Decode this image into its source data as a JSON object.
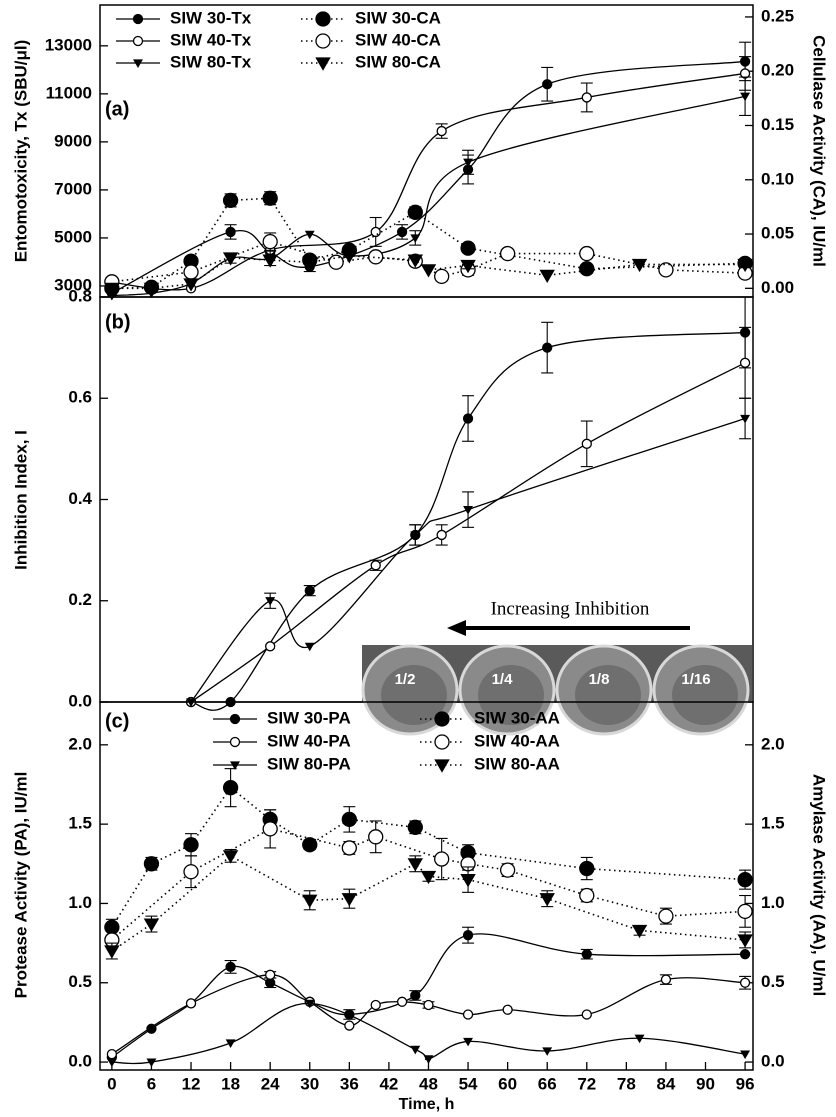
{
  "chart_data": [
    {
      "type": "line",
      "panel_label": "(a)",
      "ylabel": "Entomotoxicity, Tx (SBU/μl)",
      "y2label": "Cellulase Activity (CA), IU/ml",
      "xlim": [
        -1.8,
        97.2
      ],
      "ylim": [
        2540,
        14700
      ],
      "yticks": [
        3000,
        5000,
        7000,
        9000,
        11000,
        13000
      ],
      "y2lim": [
        -0.008,
        0.261
      ],
      "y2ticks": [
        {
          "value": 0,
          "label": "0.00"
        },
        {
          "value": 0.05,
          "label": "0.05"
        },
        {
          "value": 0.1,
          "label": "0.10"
        },
        {
          "value": 0.15,
          "label": "0.15"
        },
        {
          "value": 0.2,
          "label": "0.20"
        },
        {
          "value": 0.25,
          "label": "0.25"
        }
      ],
      "legend": "upper left",
      "series": [
        {
          "name": "SIW 30-Tx",
          "color": "#000000",
          "marker": "circle-filled",
          "line": "solid",
          "x": [
            0,
            18,
            24,
            30,
            44,
            54,
            66,
            96
          ],
          "values": [
            2700,
            5250,
            4400,
            3800,
            5250,
            7850,
            11400,
            12350
          ],
          "errors": [
            null,
            300,
            null,
            200,
            300,
            600,
            700,
            800
          ]
        },
        {
          "name": "SIW 40-Tx",
          "color": "#000000",
          "marker": "circle-open",
          "line": "solid",
          "x": [
            0,
            12,
            24,
            40,
            50,
            72,
            96
          ],
          "values": [
            3150,
            2900,
            4500,
            5250,
            9450,
            10850,
            11850
          ],
          "errors": [
            null,
            null,
            300,
            600,
            300,
            600,
            700
          ]
        },
        {
          "name": "SIW 80-Tx",
          "color": "#000000",
          "marker": "triangle-down",
          "line": "solid",
          "x": [
            0,
            6,
            12,
            18,
            24,
            30,
            36,
            46,
            54,
            96
          ],
          "values": [
            2600,
            2700,
            3100,
            4150,
            4150,
            5150,
            4250,
            5000,
            8150,
            10900
          ],
          "errors": [
            null,
            null,
            null,
            200,
            300,
            null,
            null,
            300,
            500,
            800
          ]
        },
        {
          "name": "SIW 30-CA",
          "color": "#000000",
          "marker": "circle-filled",
          "line": "dotted",
          "axis": "y2",
          "x": [
            0,
            6,
            12,
            18,
            24,
            30,
            36,
            46,
            54,
            72,
            96
          ],
          "values": [
            0.0,
            0.001,
            0.025,
            0.081,
            0.083,
            0.026,
            0.035,
            0.07,
            0.037,
            0.018,
            0.023
          ],
          "errors": [
            null,
            null,
            0.004,
            0.006,
            0.006,
            0.004,
            0.003,
            0.005,
            0.003,
            0.004,
            0.004
          ]
        },
        {
          "name": "SIW 40-CA",
          "color": "#000000",
          "marker": "circle-open",
          "line": "dotted",
          "axis": "y2",
          "x": [
            0,
            12,
            24,
            34,
            40,
            46,
            50,
            54,
            60,
            72,
            84,
            96
          ],
          "values": [
            0.006,
            0.015,
            0.043,
            0.024,
            0.029,
            0.025,
            0.011,
            0.017,
            0.032,
            0.032,
            0.017,
            0.014
          ],
          "errors": [
            null,
            0.003,
            0.008,
            null,
            0.004,
            0.004,
            0.004,
            0.005,
            0.003,
            0.003,
            0.003,
            0.004
          ]
        },
        {
          "name": "SIW 80-CA",
          "color": "#000000",
          "marker": "triangle-down",
          "line": "dotted",
          "axis": "y2",
          "x": [
            0,
            6,
            12,
            18,
            24,
            30,
            36,
            46,
            48,
            54,
            66,
            80,
            96
          ],
          "values": [
            0.0,
            0.0,
            0.004,
            0.028,
            0.026,
            0.024,
            0.03,
            0.026,
            0.017,
            0.021,
            0.012,
            0.022,
            0.022
          ],
          "errors": [
            null,
            null,
            null,
            null,
            null,
            null,
            null,
            null,
            null,
            0.003,
            null,
            null,
            0.003
          ]
        }
      ]
    },
    {
      "type": "line",
      "panel_label": "(b)",
      "ylabel": "Inhibition Index, I",
      "xlim": [
        -1.8,
        97.2
      ],
      "ylim": [
        0,
        0.8
      ],
      "yticks": [
        {
          "value": 0,
          "label": "0.0"
        },
        {
          "value": 0.2,
          "label": "0.2"
        },
        {
          "value": 0.4,
          "label": "0.4"
        },
        {
          "value": 0.6,
          "label": "0.6"
        },
        {
          "value": 0.8,
          "label": "0.8"
        }
      ],
      "annotation": "Increasing Inhibition",
      "inset_labels": [
        "1/2",
        "1/4",
        "1/8",
        "1/16"
      ],
      "series": [
        {
          "color": "#000000",
          "marker": "circle-filled",
          "line": "solid",
          "x": [
            12,
            18,
            30,
            46,
            54,
            66,
            96
          ],
          "values": [
            0,
            0,
            0.22,
            0.33,
            0.56,
            0.7,
            0.73
          ],
          "errors": [
            null,
            null,
            0.01,
            0.02,
            0.045,
            0.05,
            0.07
          ]
        },
        {
          "color": "#000000",
          "marker": "circle-open",
          "line": "solid",
          "x": [
            12,
            24,
            40,
            50,
            72,
            96
          ],
          "values": [
            0,
            0.11,
            0.27,
            0.33,
            0.51,
            0.67
          ],
          "errors": [
            null,
            null,
            0.01,
            0.02,
            0.045,
            0.07
          ]
        },
        {
          "color": "#000000",
          "marker": "triangle-down",
          "line": "solid",
          "x": [
            12,
            24,
            30,
            46,
            54,
            96
          ],
          "values": [
            0,
            0.2,
            0.11,
            0.33,
            0.38,
            0.56
          ],
          "errors": [
            null,
            0.015,
            null,
            0.02,
            0.035,
            0.04
          ]
        }
      ]
    },
    {
      "type": "line",
      "panel_label": "(c)",
      "xlabel": "Time, h",
      "ylabel": "Protease Activity (PA), IU/ml",
      "y2label": "Amylase Activity (AA), U/ml",
      "xlim": [
        -1.8,
        97.2
      ],
      "xticks": [
        0,
        6,
        12,
        18,
        24,
        30,
        36,
        42,
        48,
        54,
        60,
        66,
        72,
        78,
        84,
        90,
        96
      ],
      "ylim": [
        -0.05,
        2.27
      ],
      "yticks": [
        {
          "value": 0,
          "label": "0.0"
        },
        {
          "value": 0.5,
          "label": "0.5"
        },
        {
          "value": 1,
          "label": "1.0"
        },
        {
          "value": 1.5,
          "label": "1.5"
        },
        {
          "value": 2,
          "label": "2.0"
        }
      ],
      "y2lim": [
        -0.05,
        2.27
      ],
      "y2ticks": [
        {
          "value": 0,
          "label": "0.0"
        },
        {
          "value": 0.5,
          "label": "0.5"
        },
        {
          "value": 1,
          "label": "1.0"
        },
        {
          "value": 1.5,
          "label": "1.5"
        },
        {
          "value": 2,
          "label": "2.0"
        }
      ],
      "legend": "upper center",
      "series": [
        {
          "name": "SIW 30-PA",
          "color": "#000000",
          "marker": "circle-filled",
          "line": "solid",
          "x": [
            0,
            6,
            12,
            18,
            24,
            30,
            36,
            46,
            54,
            72,
            96
          ],
          "values": [
            0.03,
            0.21,
            0.37,
            0.6,
            0.5,
            0.38,
            0.3,
            0.42,
            0.8,
            0.68,
            0.68
          ],
          "errors": [
            null,
            null,
            null,
            0.04,
            0.03,
            null,
            0.03,
            0.03,
            0.05,
            0.03,
            null
          ]
        },
        {
          "name": "SIW 40-PA",
          "color": "#000000",
          "marker": "circle-open",
          "line": "solid",
          "x": [
            0,
            12,
            24,
            30,
            36,
            40,
            44,
            48,
            54,
            60,
            72,
            84,
            96
          ],
          "values": [
            0.05,
            0.37,
            0.55,
            0.38,
            0.23,
            0.36,
            0.38,
            0.36,
            0.3,
            0.33,
            0.3,
            0.52,
            0.5
          ],
          "errors": [
            null,
            null,
            0.02,
            null,
            null,
            null,
            null,
            0.02,
            null,
            null,
            null,
            0.03,
            0.04
          ]
        },
        {
          "name": "SIW 80-PA",
          "color": "#000000",
          "marker": "triangle-down",
          "line": "solid",
          "x": [
            0,
            6,
            18,
            30,
            46,
            48,
            54,
            66,
            80,
            96
          ],
          "values": [
            0.0,
            0.0,
            0.12,
            0.37,
            0.08,
            0.02,
            0.13,
            0.07,
            0.15,
            0.05
          ],
          "errors": [
            null,
            null,
            null,
            null,
            null,
            null,
            null,
            null,
            null,
            null
          ]
        },
        {
          "name": "SIW 30-AA",
          "color": "#000000",
          "marker": "circle-filled",
          "line": "dotted",
          "axis": "y2",
          "x": [
            0,
            6,
            12,
            18,
            24,
            30,
            36,
            46,
            54,
            72,
            96
          ],
          "values": [
            0.85,
            1.25,
            1.37,
            1.73,
            1.53,
            1.37,
            1.53,
            1.48,
            1.32,
            1.22,
            1.15
          ],
          "errors": [
            0.05,
            0.04,
            0.07,
            0.12,
            0.06,
            0.03,
            0.08,
            0.04,
            0.05,
            0.07,
            0.06
          ]
        },
        {
          "name": "SIW 40-AA",
          "color": "#000000",
          "marker": "circle-open",
          "line": "dotted",
          "axis": "y2",
          "x": [
            0,
            12,
            24,
            36,
            40,
            50,
            54,
            60,
            72,
            84,
            96
          ],
          "values": [
            0.77,
            1.2,
            1.47,
            1.35,
            1.42,
            1.28,
            1.25,
            1.21,
            1.05,
            0.92,
            0.95
          ],
          "errors": [
            null,
            0.1,
            0.12,
            0.04,
            0.1,
            0.13,
            0.04,
            0.04,
            0.04,
            0.05,
            0.1
          ]
        },
        {
          "name": "SIW 80-AA",
          "color": "#000000",
          "marker": "triangle-down",
          "line": "dotted",
          "axis": "y2",
          "x": [
            0,
            6,
            18,
            30,
            36,
            46,
            48,
            54,
            66,
            80,
            96
          ],
          "values": [
            0.7,
            0.87,
            1.3,
            1.02,
            1.03,
            1.25,
            1.17,
            1.15,
            1.03,
            0.83,
            0.77
          ],
          "errors": [
            0.05,
            0.05,
            0.04,
            0.06,
            0.06,
            0.05,
            0.03,
            0.08,
            0.05,
            0.03,
            0.05
          ]
        }
      ]
    }
  ]
}
